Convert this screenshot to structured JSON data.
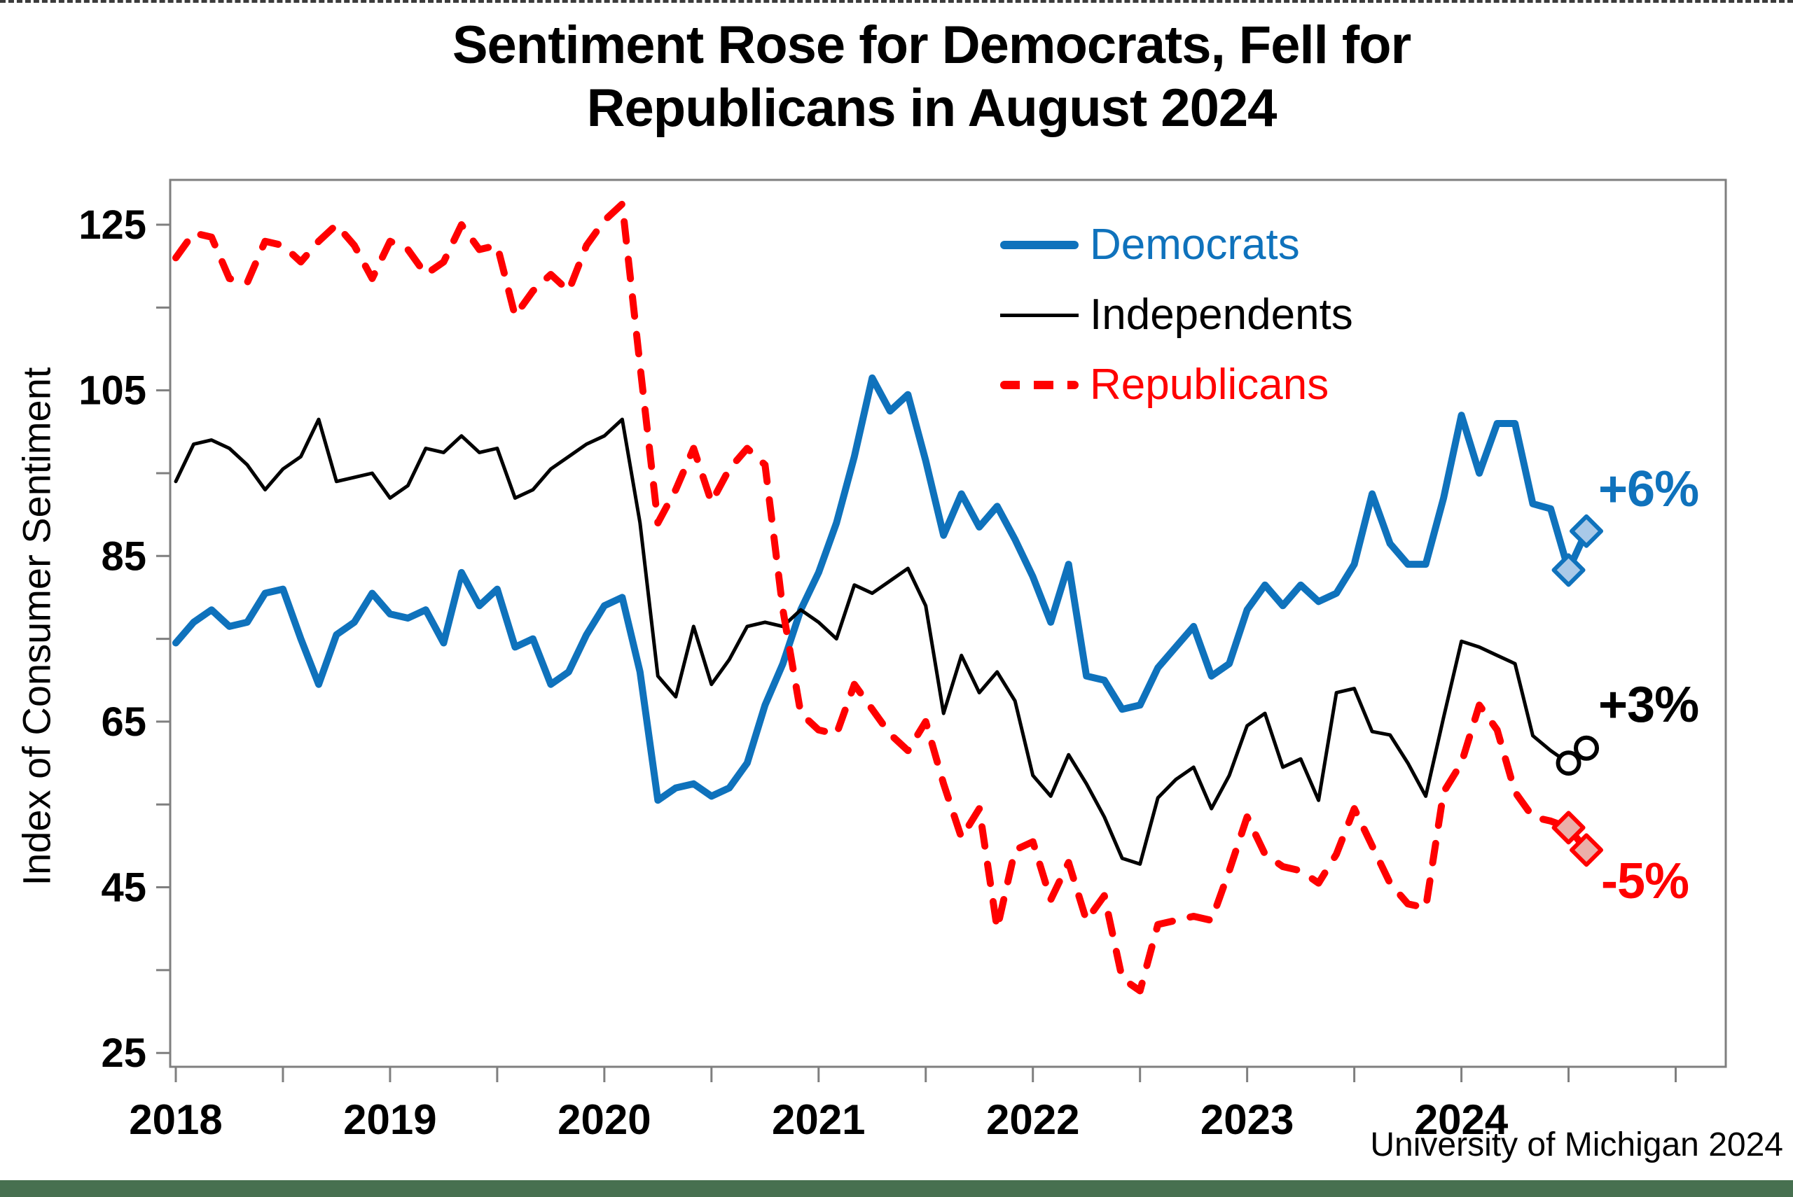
{
  "title": {
    "line1": "Sentiment Rose for Democrats, Fell for",
    "line2": "Republicans in August 2024"
  },
  "y_axis": {
    "label": "Index of Consumer Sentiment",
    "tick_values": [
      25,
      35,
      45,
      55,
      65,
      75,
      85,
      95,
      105,
      115,
      125
    ],
    "labeled_ticks": [
      25,
      45,
      65,
      85,
      105,
      125
    ]
  },
  "x_axis": {
    "years": [
      "2018",
      "2019",
      "2020",
      "2021",
      "2022",
      "2023",
      "2024"
    ],
    "tick_months": [
      0,
      6,
      12,
      18,
      24,
      30,
      36,
      42,
      48,
      54,
      60,
      66,
      72,
      78,
      84
    ]
  },
  "legend": [
    {
      "label": "Democrats",
      "color": "#0F72BC",
      "style": "solid-thick"
    },
    {
      "label": "Independents",
      "color": "#000000",
      "style": "solid-thin"
    },
    {
      "label": "Republicans",
      "color": "#FF0000",
      "style": "dashed-thick"
    }
  ],
  "annotations": [
    {
      "text": "+6%",
      "series": "Democrats",
      "color": "#0F72BC"
    },
    {
      "text": "+3%",
      "series": "Independents",
      "color": "#000000"
    },
    {
      "text": "-5%",
      "series": "Republicans",
      "color": "#FF0000"
    }
  ],
  "source": "University of Michigan 2024",
  "footer_bar": {
    "color": "#477050"
  },
  "axis_color": "#7F7F7F",
  "chart_data": {
    "type": "line",
    "x_start": "2018-01",
    "x_end": "2024-08",
    "frequency": "monthly",
    "title": "Sentiment Rose for Democrats, Fell for Republicans in August 2024",
    "xlabel": "",
    "ylabel": "Index of Consumer Sentiment",
    "ylim": [
      23,
      130.5
    ],
    "grid": false,
    "legend_position": "inside-top-right",
    "series": [
      {
        "name": "Democrats",
        "color": "#0F72BC",
        "line": "solid",
        "thickness": "thick",
        "end_markers": "filled-diamonds",
        "marker_fill": "#A9C9E8",
        "values": [
          74.5,
          77,
          78.5,
          76.5,
          77,
          80.5,
          81,
          75,
          69.5,
          75.5,
          77,
          80.5,
          78,
          77.5,
          78.5,
          74.5,
          83,
          79,
          81,
          74,
          75,
          69.5,
          71,
          75.5,
          79,
          80,
          71,
          55.5,
          57,
          57.5,
          56,
          57,
          60,
          67,
          72,
          78.5,
          83,
          89,
          97,
          106.5,
          102.5,
          104.5,
          96.5,
          87.5,
          92.5,
          88.5,
          91,
          87,
          82.5,
          77,
          84,
          70.5,
          70,
          66.5,
          67,
          71.5,
          74,
          76.5,
          70.5,
          72,
          78.5,
          81.5,
          79,
          81.5,
          79.5,
          80.5,
          84,
          92.5,
          86.5,
          84,
          84,
          92,
          102,
          95,
          101,
          101,
          91.3,
          90.7,
          83.3,
          88
        ]
      },
      {
        "name": "Independents",
        "color": "#000000",
        "line": "solid",
        "thickness": "thin",
        "end_markers": "open-circles",
        "marker_fill": "#FFFFFF",
        "values": [
          94,
          98.5,
          99,
          98,
          96,
          93,
          95.5,
          97,
          101.5,
          94,
          94.5,
          95,
          92,
          93.5,
          98,
          97.5,
          99.5,
          97.5,
          98,
          92,
          93,
          95.5,
          97,
          98.5,
          99.5,
          101.5,
          89,
          70.5,
          68,
          76.5,
          69.5,
          72.5,
          76.5,
          77,
          76.5,
          78.5,
          77,
          75,
          81.5,
          80.5,
          82,
          83.5,
          79,
          66,
          73,
          68.5,
          71,
          67.5,
          58.5,
          56,
          61,
          57.5,
          53.5,
          48.5,
          47.8,
          55.8,
          58,
          59.5,
          54.5,
          58.5,
          64.5,
          66,
          59.5,
          60.5,
          55.5,
          68.5,
          69,
          63.8,
          63.4,
          60,
          56,
          65.5,
          74.7,
          74,
          73,
          72,
          63.3,
          61.5,
          60,
          61.8
        ]
      },
      {
        "name": "Republicans",
        "color": "#FF0000",
        "line": "dashed",
        "thickness": "thick",
        "end_markers": "filled-diamonds",
        "marker_fill": "#EBAFA9",
        "values": [
          121,
          124,
          123.5,
          118.5,
          118,
          123,
          122.5,
          120.5,
          123,
          125,
          122.5,
          118.5,
          123,
          122,
          119,
          120.5,
          125,
          122,
          122.5,
          114,
          117,
          119,
          117,
          122.5,
          125.5,
          127.5,
          108,
          89,
          93,
          98,
          91.5,
          95.5,
          98,
          96,
          78.5,
          66,
          64,
          63.5,
          69.5,
          66.5,
          63.5,
          61.5,
          65,
          57.5,
          51,
          54.5,
          40,
          49.5,
          50.5,
          43.5,
          48,
          41,
          44,
          34,
          32.5,
          40.5,
          41,
          41.5,
          41,
          47,
          53.5,
          49,
          47.5,
          47,
          45.5,
          49,
          54.5,
          50,
          45.5,
          43,
          42.5,
          56.5,
          60,
          67,
          64,
          56.5,
          53.5,
          53,
          52.2,
          49.5
        ]
      }
    ]
  }
}
